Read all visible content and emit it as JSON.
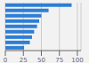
{
  "chart_data": {
    "type": "bar",
    "orientation": "horizontal",
    "values": [
      92,
      60,
      50,
      47,
      44,
      40,
      37,
      34,
      26
    ],
    "color": "#2e7ed4",
    "xlim": [
      0,
      105
    ],
    "xticks": [
      0,
      25,
      50,
      75,
      100
    ],
    "grid": true,
    "tick_labels": "x"
  }
}
